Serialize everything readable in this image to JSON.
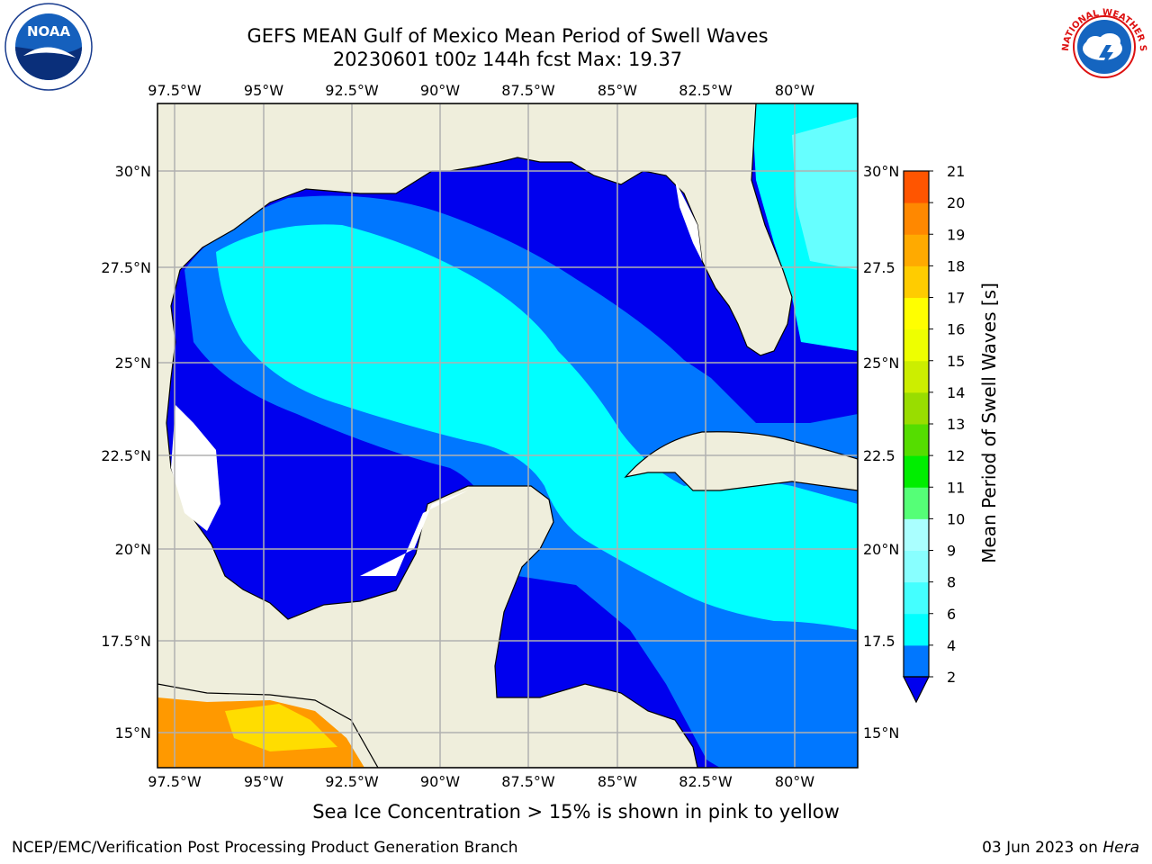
{
  "title": {
    "line1": "GEFS MEAN Gulf of Mexico Mean Period of Swell Waves",
    "line2": "20230601 t00z 144h fcst   Max: 19.37"
  },
  "map": {
    "lon_ticks": [
      "97.5°W",
      "95°W",
      "92.5°W",
      "90°W",
      "87.5°W",
      "85°W",
      "82.5°W",
      "80°W"
    ],
    "lat_ticks_left": [
      "30°N",
      "27.5°N",
      "25°N",
      "22.5°N",
      "20°N",
      "17.5°N",
      "15°N"
    ],
    "lat_ticks_right": [
      "30°N",
      "27.5",
      "25°N",
      "22.5",
      "20°N",
      "17.5",
      "15°N"
    ],
    "colors": {
      "land": "#efeedc",
      "deep_blue": "#0000ee",
      "mid_blue": "#0077ff",
      "cyan": "#00ffff",
      "light_cyan": "#66ffff",
      "pale_cyan": "#99ffff",
      "grid": "#b0b0b0"
    }
  },
  "colorbar": {
    "label": "Mean Period of Swell Waves [s]",
    "ticks": [
      "2",
      "4",
      "6",
      "8",
      "9",
      "10",
      "11",
      "12",
      "13",
      "14",
      "15",
      "16",
      "17",
      "18",
      "19",
      "20",
      "21"
    ],
    "colors": [
      "#0077ff",
      "#00ffff",
      "#44ffff",
      "#88ffff",
      "#aaffff",
      "#55ff77",
      "#00ee00",
      "#55dd00",
      "#99dd00",
      "#ccee00",
      "#eeff00",
      "#ffff00",
      "#ffcc00",
      "#ffaa00",
      "#ff8800",
      "#ff5500",
      "#ff2200",
      "#ff0000"
    ]
  },
  "note": "Sea Ice Concentration > 15% is shown in pink to yellow",
  "footer": {
    "left": "NCEP/EMC/Verification Post Processing Product Generation Branch",
    "right_date": "03 Jun 2023 on ",
    "right_host": "Hera"
  },
  "logos": {
    "noaa_text": "NOAA",
    "nws_text": "NATIONAL WEATHER SERVICE"
  }
}
